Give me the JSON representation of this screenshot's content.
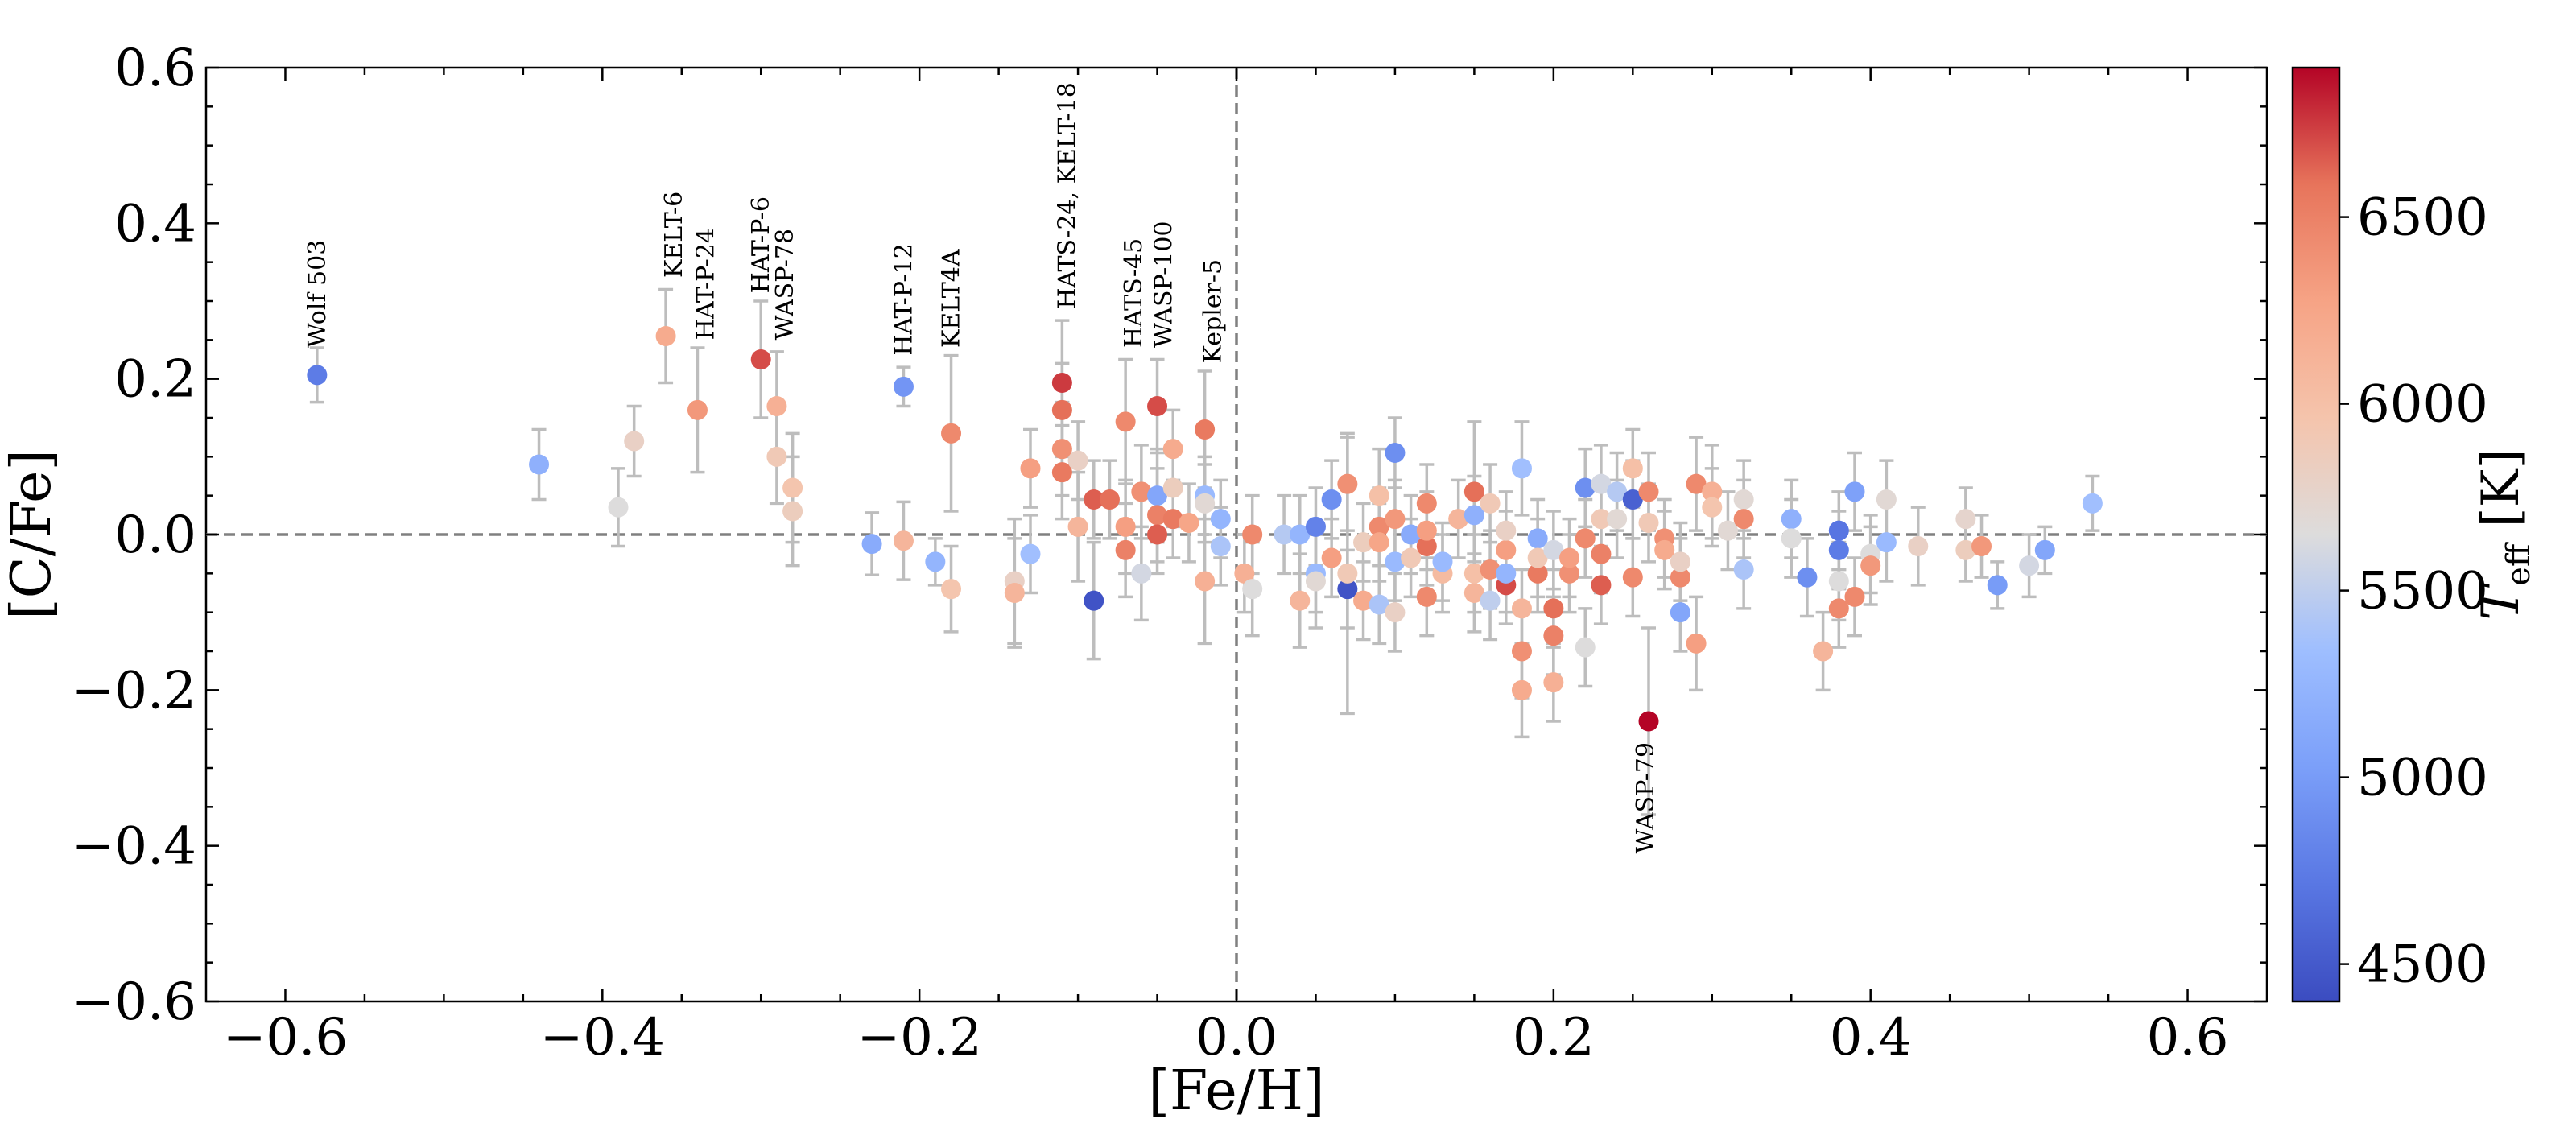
{
  "chart_data": {
    "type": "scatter",
    "title": "",
    "xlabel": "[Fe/H]",
    "ylabel": "[C/Fe]",
    "xlim": [
      -0.65,
      0.65
    ],
    "ylim": [
      -0.6,
      0.6
    ],
    "xticks": [
      -0.6,
      -0.4,
      -0.2,
      0.0,
      0.2,
      0.4,
      0.6
    ],
    "xtick_labels": [
      "−0.6",
      "−0.4",
      "−0.2",
      "0.0",
      "0.2",
      "0.4",
      "0.6"
    ],
    "yticks": [
      0.6,
      0.4,
      0.2,
      0.0,
      -0.2,
      -0.4,
      -0.6
    ],
    "ytick_labels": [
      "0.6",
      "0.4",
      "0.2",
      "0.0",
      "−0.2",
      "−0.4",
      "−0.6"
    ],
    "grid": false,
    "reference_lines": {
      "x": 0.0,
      "y": 0.0,
      "style": "dashed"
    },
    "colorbar": {
      "label": "T_eff [K]",
      "label_main": "T",
      "label_sub": "eff",
      "label_unit": "[K]",
      "range": [
        4400,
        6900
      ],
      "ticks": [
        4500,
        5000,
        5500,
        6000,
        6500
      ],
      "tick_labels": [
        "4500",
        "5000",
        "5500",
        "6000",
        "6500"
      ],
      "colormap": "coolwarm"
    },
    "annotations": [
      {
        "text": "Wolf 503",
        "x": -0.58,
        "y": 0.24,
        "rotation": 90
      },
      {
        "text": "KELT-6",
        "x": -0.355,
        "y": 0.33,
        "rotation": 90
      },
      {
        "text": "HAT-P-24",
        "x": -0.335,
        "y": 0.25,
        "rotation": 90
      },
      {
        "text": "HAT-P-6",
        "x": -0.3,
        "y": 0.31,
        "rotation": 90
      },
      {
        "text": "WASP-78",
        "x": -0.285,
        "y": 0.25,
        "rotation": 90
      },
      {
        "text": "HAT-P-12",
        "x": -0.21,
        "y": 0.23,
        "rotation": 90
      },
      {
        "text": "KELT4A",
        "x": -0.18,
        "y": 0.24,
        "rotation": 90
      },
      {
        "text": "HATS-24, KELT-18",
        "x": -0.107,
        "y": 0.29,
        "rotation": 90
      },
      {
        "text": "HATS-45",
        "x": -0.065,
        "y": 0.24,
        "rotation": 90
      },
      {
        "text": "WASP-100",
        "x": -0.046,
        "y": 0.24,
        "rotation": 90
      },
      {
        "text": "Kepler-5",
        "x": -0.015,
        "y": 0.22,
        "rotation": 90
      },
      {
        "text": "WASP-79",
        "x": 0.258,
        "y": -0.41,
        "rotation": 90
      }
    ],
    "points": [
      {
        "x": -0.58,
        "y": 0.205,
        "err": 0.035,
        "teff": 4750
      },
      {
        "x": -0.44,
        "y": 0.09,
        "err": 0.045,
        "teff": 5200
      },
      {
        "x": -0.39,
        "y": 0.035,
        "err": 0.05,
        "teff": 5650
      },
      {
        "x": -0.38,
        "y": 0.12,
        "err": 0.045,
        "teff": 5800
      },
      {
        "x": -0.36,
        "y": 0.255,
        "err": 0.06,
        "teff": 6200
      },
      {
        "x": -0.34,
        "y": 0.16,
        "err": 0.08,
        "teff": 6350
      },
      {
        "x": -0.3,
        "y": 0.225,
        "err": 0.075,
        "teff": 6700
      },
      {
        "x": -0.29,
        "y": 0.165,
        "err": 0.07,
        "teff": 6150
      },
      {
        "x": -0.29,
        "y": 0.1,
        "err": 0.06,
        "teff": 5900
      },
      {
        "x": -0.28,
        "y": 0.06,
        "err": 0.07,
        "teff": 5950
      },
      {
        "x": -0.28,
        "y": 0.03,
        "err": 0.07,
        "teff": 5850
      },
      {
        "x": -0.23,
        "y": -0.012,
        "err": 0.04,
        "teff": 5150
      },
      {
        "x": -0.21,
        "y": 0.19,
        "err": 0.025,
        "teff": 4950
      },
      {
        "x": -0.21,
        "y": -0.008,
        "err": 0.05,
        "teff": 6100
      },
      {
        "x": -0.19,
        "y": -0.035,
        "err": 0.03,
        "teff": 5250
      },
      {
        "x": -0.18,
        "y": 0.13,
        "err": 0.1,
        "teff": 6450
      },
      {
        "x": -0.18,
        "y": -0.07,
        "err": 0.055,
        "teff": 5950
      },
      {
        "x": -0.14,
        "y": -0.06,
        "err": 0.08,
        "teff": 5800
      },
      {
        "x": -0.14,
        "y": -0.075,
        "err": 0.07,
        "teff": 6100
      },
      {
        "x": -0.13,
        "y": -0.025,
        "err": 0.05,
        "teff": 5350
      },
      {
        "x": -0.13,
        "y": 0.085,
        "err": 0.05,
        "teff": 6300
      },
      {
        "x": -0.11,
        "y": 0.195,
        "err": 0.08,
        "teff": 6750
      },
      {
        "x": -0.11,
        "y": 0.16,
        "err": 0.06,
        "teff": 6600
      },
      {
        "x": -0.11,
        "y": 0.11,
        "err": 0.06,
        "teff": 6400
      },
      {
        "x": -0.11,
        "y": 0.08,
        "err": 0.06,
        "teff": 6550
      },
      {
        "x": -0.1,
        "y": 0.01,
        "err": 0.07,
        "teff": 6100
      },
      {
        "x": -0.1,
        "y": 0.095,
        "err": 0.05,
        "teff": 5800
      },
      {
        "x": -0.09,
        "y": -0.085,
        "err": 0.075,
        "teff": 4450
      },
      {
        "x": -0.09,
        "y": 0.045,
        "err": 0.05,
        "teff": 6650
      },
      {
        "x": -0.08,
        "y": 0.045,
        "err": 0.05,
        "teff": 6600
      },
      {
        "x": -0.07,
        "y": 0.145,
        "err": 0.08,
        "teff": 6450
      },
      {
        "x": -0.07,
        "y": 0.01,
        "err": 0.06,
        "teff": 6300
      },
      {
        "x": -0.07,
        "y": -0.02,
        "err": 0.06,
        "teff": 6500
      },
      {
        "x": -0.06,
        "y": 0.055,
        "err": 0.06,
        "teff": 6400
      },
      {
        "x": -0.06,
        "y": -0.05,
        "err": 0.06,
        "teff": 5600
      },
      {
        "x": -0.05,
        "y": 0.165,
        "err": 0.06,
        "teff": 6700
      },
      {
        "x": -0.05,
        "y": 0.05,
        "err": 0.06,
        "teff": 5100
      },
      {
        "x": -0.05,
        "y": 0.025,
        "err": 0.06,
        "teff": 6500
      },
      {
        "x": -0.05,
        "y": 0.0,
        "err": 0.05,
        "teff": 6650
      },
      {
        "x": -0.04,
        "y": 0.11,
        "err": 0.05,
        "teff": 6200
      },
      {
        "x": -0.04,
        "y": 0.06,
        "err": 0.05,
        "teff": 5850
      },
      {
        "x": -0.04,
        "y": 0.02,
        "err": 0.05,
        "teff": 6550
      },
      {
        "x": -0.03,
        "y": 0.015,
        "err": 0.05,
        "teff": 6250
      },
      {
        "x": -0.02,
        "y": 0.135,
        "err": 0.075,
        "teff": 6550
      },
      {
        "x": -0.02,
        "y": 0.05,
        "err": 0.05,
        "teff": 5300
      },
      {
        "x": -0.02,
        "y": 0.04,
        "err": 0.05,
        "teff": 5700
      },
      {
        "x": -0.02,
        "y": -0.06,
        "err": 0.08,
        "teff": 6150
      },
      {
        "x": -0.01,
        "y": 0.02,
        "err": 0.05,
        "teff": 5250
      },
      {
        "x": -0.01,
        "y": -0.015,
        "err": 0.05,
        "teff": 5400
      },
      {
        "x": 0.005,
        "y": -0.05,
        "err": 0.05,
        "teff": 6150
      },
      {
        "x": 0.01,
        "y": 0.0,
        "err": 0.05,
        "teff": 6450
      },
      {
        "x": 0.01,
        "y": -0.07,
        "err": 0.06,
        "teff": 5650
      },
      {
        "x": 0.03,
        "y": 0.0,
        "err": 0.05,
        "teff": 5450
      },
      {
        "x": 0.04,
        "y": -0.085,
        "err": 0.06,
        "teff": 6100
      },
      {
        "x": 0.04,
        "y": 0.0,
        "err": 0.05,
        "teff": 5250
      },
      {
        "x": 0.05,
        "y": 0.01,
        "err": 0.05,
        "teff": 4800
      },
      {
        "x": 0.05,
        "y": -0.05,
        "err": 0.05,
        "teff": 5300
      },
      {
        "x": 0.05,
        "y": -0.06,
        "err": 0.06,
        "teff": 5700
      },
      {
        "x": 0.06,
        "y": 0.045,
        "err": 0.05,
        "teff": 4900
      },
      {
        "x": 0.06,
        "y": -0.03,
        "err": 0.05,
        "teff": 6300
      },
      {
        "x": 0.07,
        "y": 0.065,
        "err": 0.06,
        "teff": 6400
      },
      {
        "x": 0.07,
        "y": -0.07,
        "err": 0.05,
        "teff": 4450
      },
      {
        "x": 0.07,
        "y": -0.05,
        "err": 0.18,
        "teff": 5900
      },
      {
        "x": 0.08,
        "y": -0.085,
        "err": 0.05,
        "teff": 6200
      },
      {
        "x": 0.08,
        "y": -0.01,
        "err": 0.05,
        "teff": 5850
      },
      {
        "x": 0.09,
        "y": 0.05,
        "err": 0.06,
        "teff": 6000
      },
      {
        "x": 0.09,
        "y": -0.09,
        "err": 0.05,
        "teff": 5400
      },
      {
        "x": 0.09,
        "y": 0.01,
        "err": 0.05,
        "teff": 6450
      },
      {
        "x": 0.09,
        "y": -0.01,
        "err": 0.05,
        "teff": 6250
      },
      {
        "x": 0.1,
        "y": 0.105,
        "err": 0.045,
        "teff": 4900
      },
      {
        "x": 0.1,
        "y": -0.035,
        "err": 0.05,
        "teff": 5300
      },
      {
        "x": 0.1,
        "y": 0.02,
        "err": 0.05,
        "teff": 6350
      },
      {
        "x": 0.1,
        "y": -0.1,
        "err": 0.05,
        "teff": 5800
      },
      {
        "x": 0.11,
        "y": 0.0,
        "err": 0.05,
        "teff": 5150
      },
      {
        "x": 0.11,
        "y": -0.03,
        "err": 0.05,
        "teff": 5900
      },
      {
        "x": 0.12,
        "y": 0.04,
        "err": 0.05,
        "teff": 6450
      },
      {
        "x": 0.12,
        "y": -0.08,
        "err": 0.05,
        "teff": 6450
      },
      {
        "x": 0.12,
        "y": -0.015,
        "err": 0.05,
        "teff": 6600
      },
      {
        "x": 0.12,
        "y": 0.005,
        "err": 0.05,
        "teff": 6300
      },
      {
        "x": 0.13,
        "y": -0.05,
        "err": 0.05,
        "teff": 6050
      },
      {
        "x": 0.13,
        "y": -0.035,
        "err": 0.05,
        "teff": 5300
      },
      {
        "x": 0.14,
        "y": 0.02,
        "err": 0.05,
        "teff": 6100
      },
      {
        "x": 0.15,
        "y": 0.055,
        "err": 0.09,
        "teff": 6600
      },
      {
        "x": 0.15,
        "y": -0.075,
        "err": 0.05,
        "teff": 6100
      },
      {
        "x": 0.15,
        "y": 0.025,
        "err": 0.05,
        "teff": 5200
      },
      {
        "x": 0.15,
        "y": -0.05,
        "err": 0.05,
        "teff": 6000
      },
      {
        "x": 0.16,
        "y": -0.085,
        "err": 0.05,
        "teff": 5500
      },
      {
        "x": 0.16,
        "y": -0.045,
        "err": 0.05,
        "teff": 6400
      },
      {
        "x": 0.16,
        "y": 0.04,
        "err": 0.05,
        "teff": 5900
      },
      {
        "x": 0.17,
        "y": -0.065,
        "err": 0.05,
        "teff": 6700
      },
      {
        "x": 0.17,
        "y": -0.02,
        "err": 0.05,
        "teff": 6300
      },
      {
        "x": 0.17,
        "y": 0.005,
        "err": 0.05,
        "teff": 5800
      },
      {
        "x": 0.17,
        "y": -0.05,
        "err": 0.05,
        "teff": 5250
      },
      {
        "x": 0.18,
        "y": 0.085,
        "err": 0.06,
        "teff": 5350
      },
      {
        "x": 0.18,
        "y": -0.15,
        "err": 0.06,
        "teff": 6400
      },
      {
        "x": 0.18,
        "y": -0.2,
        "err": 0.06,
        "teff": 6200
      },
      {
        "x": 0.18,
        "y": -0.095,
        "err": 0.05,
        "teff": 6100
      },
      {
        "x": 0.19,
        "y": -0.05,
        "err": 0.05,
        "teff": 6550
      },
      {
        "x": 0.19,
        "y": -0.005,
        "err": 0.05,
        "teff": 5150
      },
      {
        "x": 0.19,
        "y": -0.03,
        "err": 0.05,
        "teff": 5900
      },
      {
        "x": 0.2,
        "y": -0.095,
        "err": 0.05,
        "teff": 6600
      },
      {
        "x": 0.2,
        "y": -0.13,
        "err": 0.05,
        "teff": 6500
      },
      {
        "x": 0.2,
        "y": -0.19,
        "err": 0.05,
        "teff": 6150
      },
      {
        "x": 0.2,
        "y": -0.02,
        "err": 0.05,
        "teff": 5600
      },
      {
        "x": 0.21,
        "y": -0.05,
        "err": 0.05,
        "teff": 6400
      },
      {
        "x": 0.21,
        "y": -0.03,
        "err": 0.05,
        "teff": 6300
      },
      {
        "x": 0.22,
        "y": 0.06,
        "err": 0.05,
        "teff": 4900
      },
      {
        "x": 0.22,
        "y": -0.145,
        "err": 0.05,
        "teff": 5650
      },
      {
        "x": 0.22,
        "y": -0.005,
        "err": 0.05,
        "teff": 6450
      },
      {
        "x": 0.23,
        "y": 0.065,
        "err": 0.05,
        "teff": 5600
      },
      {
        "x": 0.23,
        "y": -0.025,
        "err": 0.05,
        "teff": 6500
      },
      {
        "x": 0.23,
        "y": -0.065,
        "err": 0.05,
        "teff": 6650
      },
      {
        "x": 0.23,
        "y": 0.02,
        "err": 0.05,
        "teff": 5900
      },
      {
        "x": 0.24,
        "y": 0.055,
        "err": 0.05,
        "teff": 5450
      },
      {
        "x": 0.24,
        "y": 0.02,
        "err": 0.05,
        "teff": 5700
      },
      {
        "x": 0.25,
        "y": 0.085,
        "err": 0.05,
        "teff": 6000
      },
      {
        "x": 0.25,
        "y": 0.045,
        "err": 0.05,
        "teff": 4550
      },
      {
        "x": 0.25,
        "y": -0.055,
        "err": 0.05,
        "teff": 6450
      },
      {
        "x": 0.26,
        "y": -0.24,
        "err": 0.12,
        "teff": 6900
      },
      {
        "x": 0.26,
        "y": 0.015,
        "err": 0.05,
        "teff": 5900
      },
      {
        "x": 0.26,
        "y": 0.055,
        "err": 0.05,
        "teff": 6450
      },
      {
        "x": 0.27,
        "y": -0.005,
        "err": 0.05,
        "teff": 6400
      },
      {
        "x": 0.27,
        "y": -0.02,
        "err": 0.05,
        "teff": 6200
      },
      {
        "x": 0.28,
        "y": -0.1,
        "err": 0.05,
        "teff": 5100
      },
      {
        "x": 0.28,
        "y": -0.055,
        "err": 0.05,
        "teff": 6450
      },
      {
        "x": 0.28,
        "y": -0.035,
        "err": 0.05,
        "teff": 5800
      },
      {
        "x": 0.29,
        "y": 0.065,
        "err": 0.06,
        "teff": 6450
      },
      {
        "x": 0.29,
        "y": -0.14,
        "err": 0.06,
        "teff": 6300
      },
      {
        "x": 0.3,
        "y": 0.055,
        "err": 0.06,
        "teff": 6150
      },
      {
        "x": 0.3,
        "y": 0.035,
        "err": 0.05,
        "teff": 5950
      },
      {
        "x": 0.31,
        "y": 0.005,
        "err": 0.05,
        "teff": 5700
      },
      {
        "x": 0.32,
        "y": 0.045,
        "err": 0.05,
        "teff": 5700
      },
      {
        "x": 0.32,
        "y": 0.02,
        "err": 0.05,
        "teff": 6450
      },
      {
        "x": 0.32,
        "y": -0.045,
        "err": 0.05,
        "teff": 5400
      },
      {
        "x": 0.35,
        "y": 0.02,
        "err": 0.05,
        "teff": 5200
      },
      {
        "x": 0.35,
        "y": -0.005,
        "err": 0.05,
        "teff": 5650
      },
      {
        "x": 0.36,
        "y": -0.055,
        "err": 0.05,
        "teff": 4900
      },
      {
        "x": 0.37,
        "y": -0.15,
        "err": 0.05,
        "teff": 6100
      },
      {
        "x": 0.38,
        "y": 0.005,
        "err": 0.05,
        "teff": 4700
      },
      {
        "x": 0.38,
        "y": -0.02,
        "err": 0.05,
        "teff": 4750
      },
      {
        "x": 0.38,
        "y": -0.06,
        "err": 0.05,
        "teff": 5650
      },
      {
        "x": 0.38,
        "y": -0.095,
        "err": 0.05,
        "teff": 6450
      },
      {
        "x": 0.39,
        "y": 0.055,
        "err": 0.05,
        "teff": 5050
      },
      {
        "x": 0.39,
        "y": -0.08,
        "err": 0.05,
        "teff": 6450
      },
      {
        "x": 0.4,
        "y": -0.025,
        "err": 0.05,
        "teff": 5650
      },
      {
        "x": 0.4,
        "y": -0.04,
        "err": 0.05,
        "teff": 6350
      },
      {
        "x": 0.41,
        "y": 0.045,
        "err": 0.05,
        "teff": 5700
      },
      {
        "x": 0.41,
        "y": -0.01,
        "err": 0.05,
        "teff": 5300
      },
      {
        "x": 0.43,
        "y": -0.015,
        "err": 0.05,
        "teff": 5800
      },
      {
        "x": 0.46,
        "y": 0.02,
        "err": 0.04,
        "teff": 5750
      },
      {
        "x": 0.46,
        "y": -0.02,
        "err": 0.04,
        "teff": 5850
      },
      {
        "x": 0.47,
        "y": -0.015,
        "err": 0.04,
        "teff": 6350
      },
      {
        "x": 0.48,
        "y": -0.065,
        "err": 0.03,
        "teff": 5000
      },
      {
        "x": 0.5,
        "y": -0.04,
        "err": 0.04,
        "teff": 5600
      },
      {
        "x": 0.51,
        "y": -0.02,
        "err": 0.03,
        "teff": 5100
      },
      {
        "x": 0.54,
        "y": 0.04,
        "err": 0.035,
        "teff": 5350
      }
    ]
  }
}
